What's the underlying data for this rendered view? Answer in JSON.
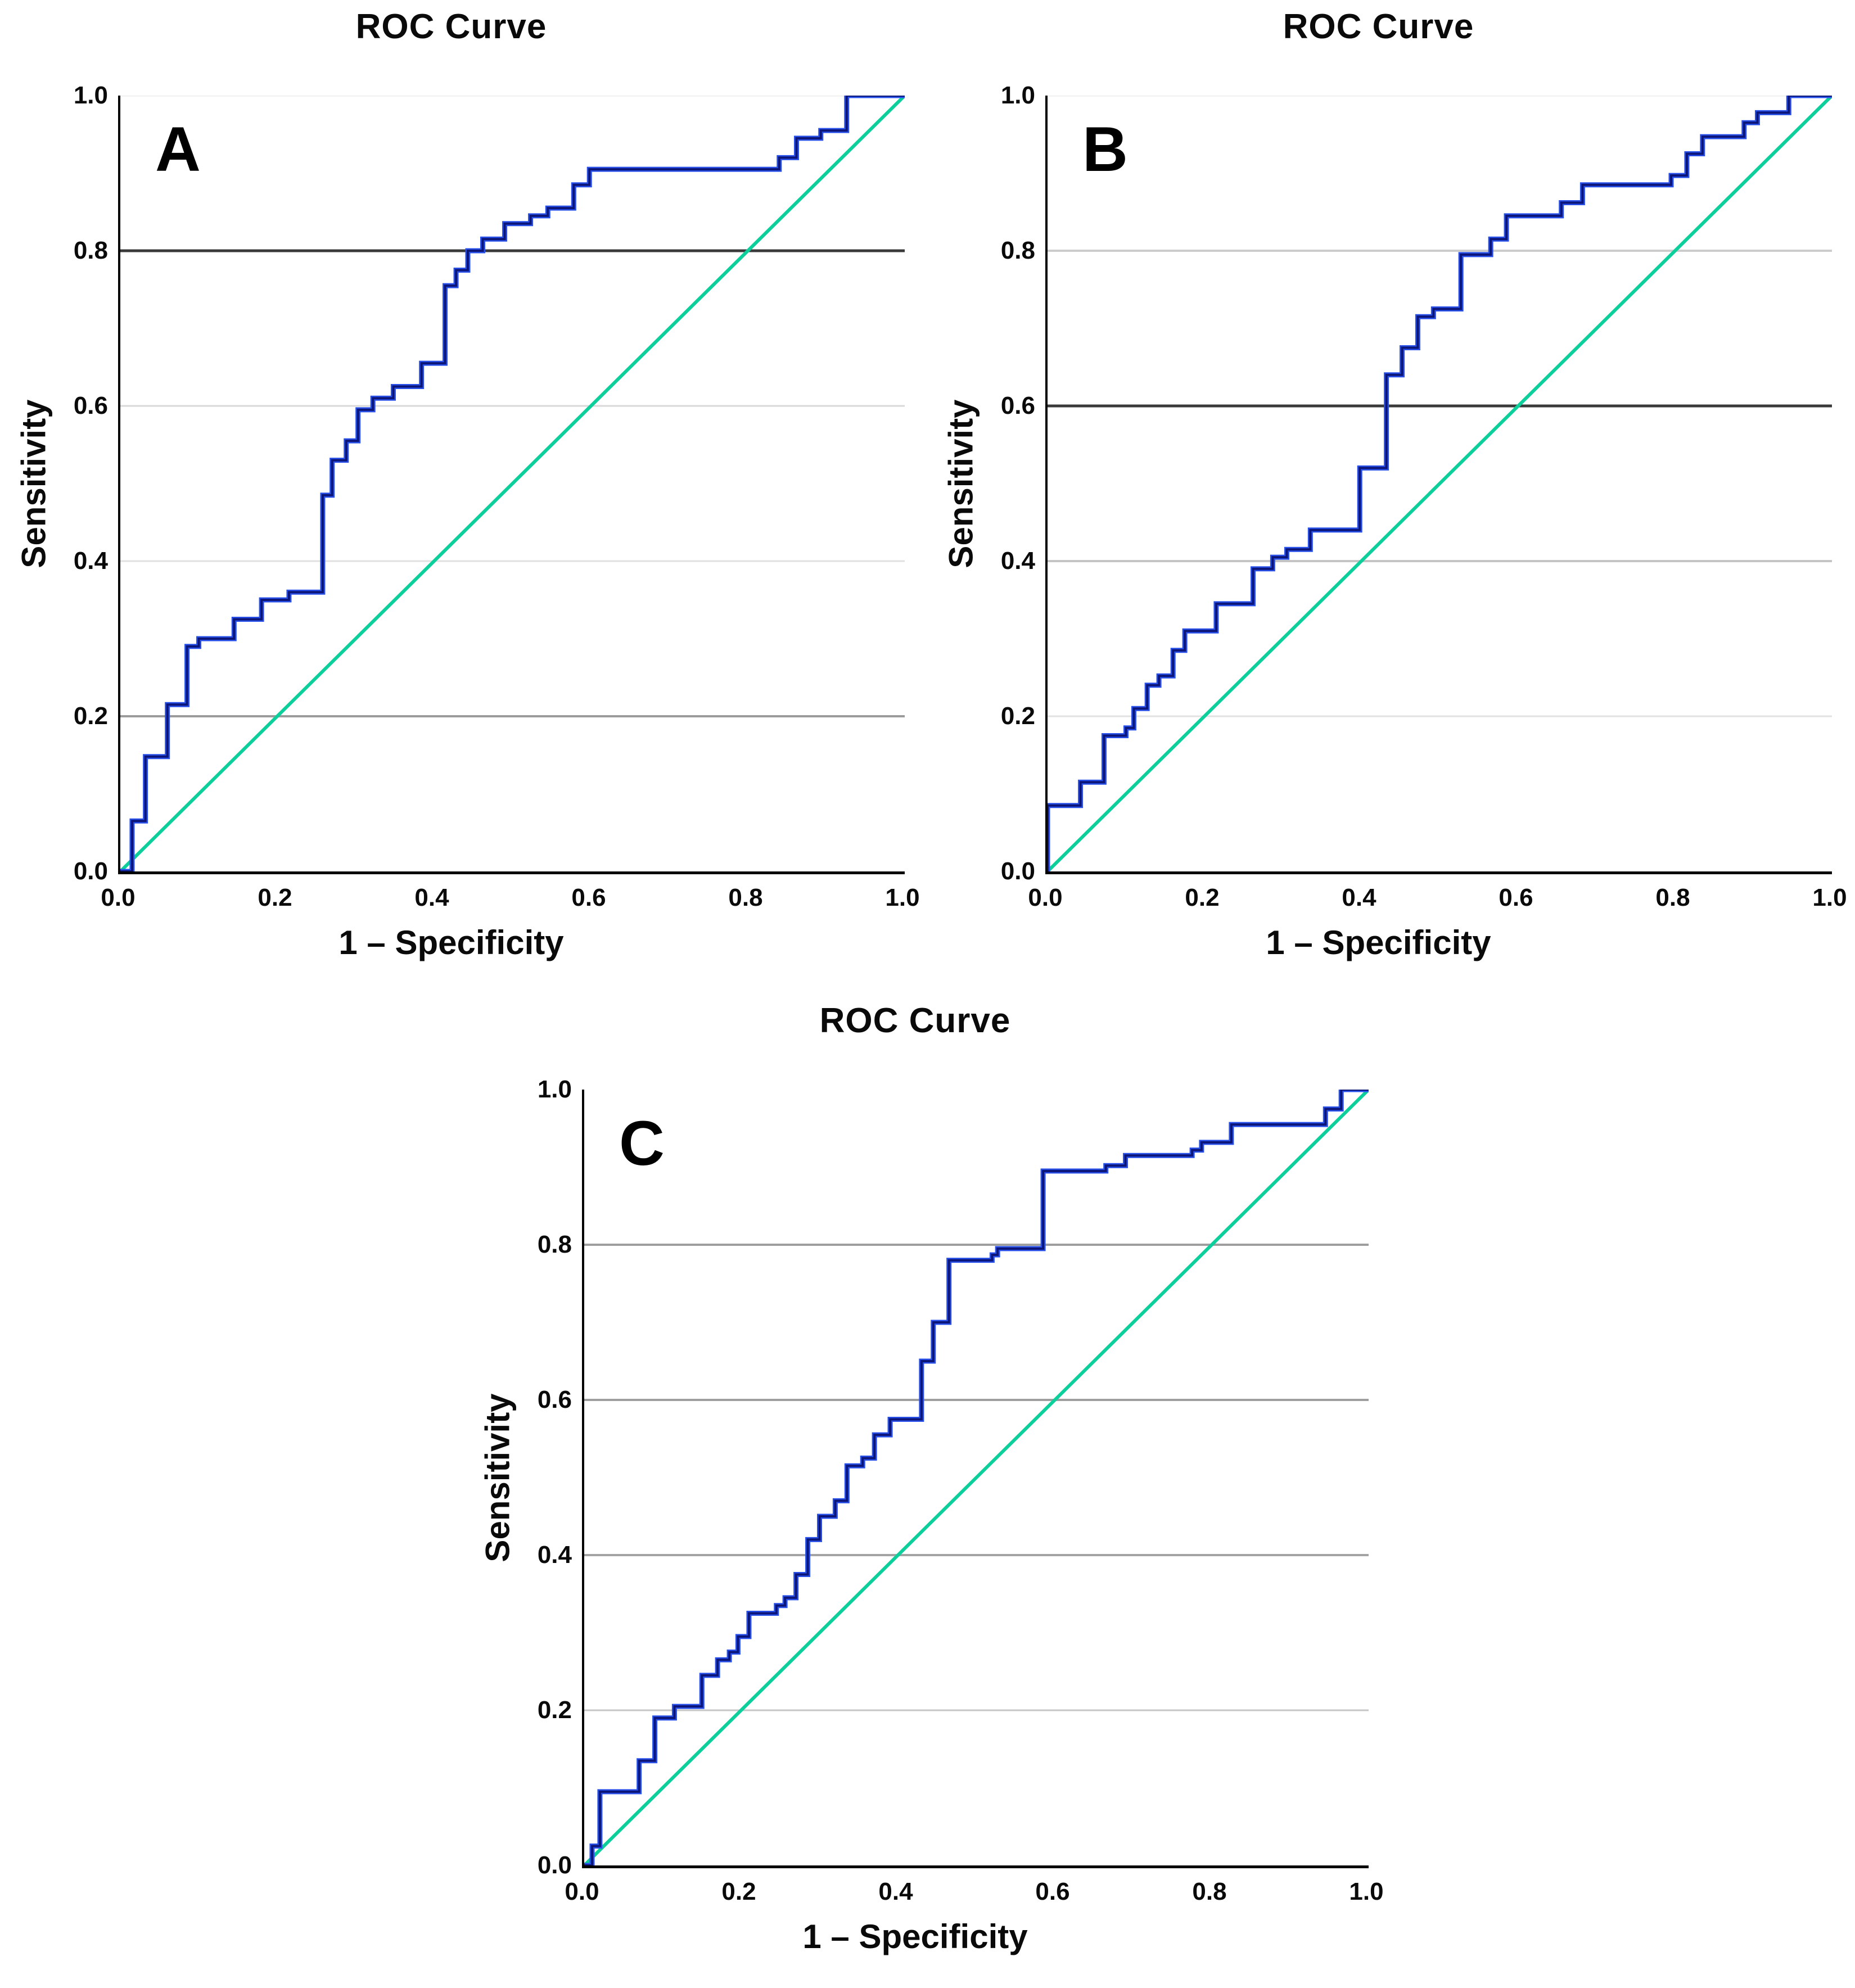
{
  "figure": {
    "background": "#ffffff",
    "colors": {
      "curve_halo": "#2850e8",
      "curve_core": "#0c1678",
      "reference_line": "#0dcf9c",
      "axis": "#000000",
      "text": "#0a0a0a"
    }
  },
  "chart_data": [
    {
      "id": "A",
      "panel_label": "A",
      "type": "line",
      "title": "ROC Curve",
      "xlabel": "1 – Specificity",
      "ylabel": "Sensitivity",
      "xlim": [
        0,
        1
      ],
      "ylim": [
        0,
        1
      ],
      "legend": "none",
      "xticks": [
        {
          "v": 0,
          "label": "0.0"
        },
        {
          "v": 0.2,
          "label": "0.2"
        },
        {
          "v": 0.4,
          "label": "0.4"
        },
        {
          "v": 0.6,
          "label": "0.6"
        },
        {
          "v": 0.8,
          "label": "0.8"
        },
        {
          "v": 1,
          "label": "1.0"
        }
      ],
      "yticks": [
        {
          "v": 0,
          "label": "0.0"
        },
        {
          "v": 0.2,
          "label": "0.2"
        },
        {
          "v": 0.4,
          "label": "0.4"
        },
        {
          "v": 0.6,
          "label": "0.6"
        },
        {
          "v": 0.8,
          "label": "0.8"
        },
        {
          "v": 1,
          "label": "1.0"
        }
      ],
      "gridlines": [
        {
          "y": 1.0,
          "color": "#ededed",
          "width": 3
        },
        {
          "y": 0.8,
          "color": "#3a3a3a",
          "width": 5
        },
        {
          "y": 0.6,
          "color": "#d8d8d8",
          "width": 3
        },
        {
          "y": 0.4,
          "color": "#e0e0e0",
          "width": 3
        },
        {
          "y": 0.2,
          "color": "#9b9b9b",
          "width": 4
        }
      ],
      "reference_line": {
        "from": [
          0,
          0
        ],
        "to": [
          1,
          1
        ]
      },
      "roc_points": [
        [
          0,
          0
        ],
        [
          0.015,
          0
        ],
        [
          0.015,
          0.065
        ],
        [
          0.032,
          0.065
        ],
        [
          0.032,
          0.148
        ],
        [
          0.06,
          0.148
        ],
        [
          0.06,
          0.215
        ],
        [
          0.085,
          0.215
        ],
        [
          0.085,
          0.29
        ],
        [
          0.1,
          0.29
        ],
        [
          0.1,
          0.3
        ],
        [
          0.145,
          0.3
        ],
        [
          0.145,
          0.325
        ],
        [
          0.18,
          0.325
        ],
        [
          0.18,
          0.35
        ],
        [
          0.215,
          0.35
        ],
        [
          0.215,
          0.36
        ],
        [
          0.258,
          0.36
        ],
        [
          0.258,
          0.485
        ],
        [
          0.27,
          0.485
        ],
        [
          0.27,
          0.53
        ],
        [
          0.288,
          0.53
        ],
        [
          0.288,
          0.555
        ],
        [
          0.303,
          0.555
        ],
        [
          0.303,
          0.595
        ],
        [
          0.322,
          0.595
        ],
        [
          0.322,
          0.61
        ],
        [
          0.348,
          0.61
        ],
        [
          0.348,
          0.625
        ],
        [
          0.384,
          0.625
        ],
        [
          0.384,
          0.655
        ],
        [
          0.414,
          0.655
        ],
        [
          0.414,
          0.755
        ],
        [
          0.428,
          0.755
        ],
        [
          0.428,
          0.775
        ],
        [
          0.443,
          0.775
        ],
        [
          0.443,
          0.8
        ],
        [
          0.462,
          0.8
        ],
        [
          0.462,
          0.815
        ],
        [
          0.49,
          0.815
        ],
        [
          0.49,
          0.835
        ],
        [
          0.523,
          0.835
        ],
        [
          0.523,
          0.845
        ],
        [
          0.545,
          0.845
        ],
        [
          0.545,
          0.855
        ],
        [
          0.578,
          0.855
        ],
        [
          0.578,
          0.885
        ],
        [
          0.598,
          0.885
        ],
        [
          0.598,
          0.905
        ],
        [
          0.84,
          0.905
        ],
        [
          0.84,
          0.92
        ],
        [
          0.862,
          0.92
        ],
        [
          0.862,
          0.945
        ],
        [
          0.893,
          0.945
        ],
        [
          0.893,
          0.955
        ],
        [
          0.926,
          0.955
        ],
        [
          0.926,
          1.0
        ],
        [
          1.0,
          1.0
        ]
      ]
    },
    {
      "id": "B",
      "panel_label": "B",
      "type": "line",
      "title": "ROC Curve",
      "xlabel": "1 – Specificity",
      "ylabel": "Sensitivity",
      "xlim": [
        0,
        1
      ],
      "ylim": [
        0,
        1
      ],
      "legend": "none",
      "xticks": [
        {
          "v": 0,
          "label": "0.0"
        },
        {
          "v": 0.2,
          "label": "0.2"
        },
        {
          "v": 0.4,
          "label": "0.4"
        },
        {
          "v": 0.6,
          "label": "0.6"
        },
        {
          "v": 0.8,
          "label": "0.8"
        },
        {
          "v": 1,
          "label": "1.0"
        }
      ],
      "yticks": [
        {
          "v": 0,
          "label": "0.0"
        },
        {
          "v": 0.2,
          "label": "0.2"
        },
        {
          "v": 0.4,
          "label": "0.4"
        },
        {
          "v": 0.6,
          "label": "0.6"
        },
        {
          "v": 0.8,
          "label": "0.8"
        },
        {
          "v": 1,
          "label": "1.0"
        }
      ],
      "gridlines": [
        {
          "y": 1.0,
          "color": "#ededed",
          "width": 3
        },
        {
          "y": 0.8,
          "color": "#cccccc",
          "width": 4
        },
        {
          "y": 0.6,
          "color": "#3a3a3a",
          "width": 5
        },
        {
          "y": 0.4,
          "color": "#c4c4c4",
          "width": 4
        },
        {
          "y": 0.2,
          "color": "#e2e2e2",
          "width": 3
        }
      ],
      "reference_line": {
        "from": [
          0,
          0
        ],
        "to": [
          1,
          1
        ]
      },
      "roc_points": [
        [
          0,
          0
        ],
        [
          0,
          0.085
        ],
        [
          0.042,
          0.085
        ],
        [
          0.042,
          0.115
        ],
        [
          0.072,
          0.115
        ],
        [
          0.072,
          0.175
        ],
        [
          0.1,
          0.175
        ],
        [
          0.1,
          0.185
        ],
        [
          0.11,
          0.185
        ],
        [
          0.11,
          0.21
        ],
        [
          0.127,
          0.21
        ],
        [
          0.127,
          0.24
        ],
        [
          0.142,
          0.24
        ],
        [
          0.142,
          0.252
        ],
        [
          0.16,
          0.252
        ],
        [
          0.16,
          0.285
        ],
        [
          0.175,
          0.285
        ],
        [
          0.175,
          0.31
        ],
        [
          0.215,
          0.31
        ],
        [
          0.215,
          0.345
        ],
        [
          0.262,
          0.345
        ],
        [
          0.262,
          0.39
        ],
        [
          0.287,
          0.39
        ],
        [
          0.287,
          0.405
        ],
        [
          0.305,
          0.405
        ],
        [
          0.305,
          0.415
        ],
        [
          0.335,
          0.415
        ],
        [
          0.335,
          0.44
        ],
        [
          0.398,
          0.44
        ],
        [
          0.398,
          0.52
        ],
        [
          0.432,
          0.52
        ],
        [
          0.432,
          0.64
        ],
        [
          0.452,
          0.64
        ],
        [
          0.452,
          0.675
        ],
        [
          0.472,
          0.675
        ],
        [
          0.472,
          0.715
        ],
        [
          0.492,
          0.715
        ],
        [
          0.492,
          0.725
        ],
        [
          0.527,
          0.725
        ],
        [
          0.527,
          0.795
        ],
        [
          0.565,
          0.795
        ],
        [
          0.565,
          0.815
        ],
        [
          0.585,
          0.815
        ],
        [
          0.585,
          0.845
        ],
        [
          0.655,
          0.845
        ],
        [
          0.655,
          0.862
        ],
        [
          0.682,
          0.862
        ],
        [
          0.682,
          0.885
        ],
        [
          0.795,
          0.885
        ],
        [
          0.795,
          0.897
        ],
        [
          0.815,
          0.897
        ],
        [
          0.815,
          0.925
        ],
        [
          0.835,
          0.925
        ],
        [
          0.835,
          0.947
        ],
        [
          0.888,
          0.947
        ],
        [
          0.888,
          0.965
        ],
        [
          0.905,
          0.965
        ],
        [
          0.905,
          0.978
        ],
        [
          0.945,
          0.978
        ],
        [
          0.945,
          1.0
        ],
        [
          1.0,
          1.0
        ]
      ]
    },
    {
      "id": "C",
      "panel_label": "C",
      "type": "line",
      "title": "ROC Curve",
      "xlabel": "1 – Specificity",
      "ylabel": "Sensitivity",
      "xlim": [
        0,
        1
      ],
      "ylim": [
        0,
        1
      ],
      "legend": "none",
      "xticks": [
        {
          "v": 0,
          "label": "0.0"
        },
        {
          "v": 0.2,
          "label": "0.2"
        },
        {
          "v": 0.4,
          "label": "0.4"
        },
        {
          "v": 0.6,
          "label": "0.6"
        },
        {
          "v": 0.8,
          "label": "0.8"
        },
        {
          "v": 1,
          "label": "1.0"
        }
      ],
      "yticks": [
        {
          "v": 0,
          "label": "0.0"
        },
        {
          "v": 0.2,
          "label": "0.2"
        },
        {
          "v": 0.4,
          "label": "0.4"
        },
        {
          "v": 0.6,
          "label": "0.6"
        },
        {
          "v": 0.8,
          "label": "0.8"
        },
        {
          "v": 1,
          "label": "1.0"
        }
      ],
      "gridlines": [
        {
          "y": 0.8,
          "color": "#9e9e9e",
          "width": 4
        },
        {
          "y": 0.6,
          "color": "#9e9e9e",
          "width": 4
        },
        {
          "y": 0.4,
          "color": "#a3a3a3",
          "width": 4
        },
        {
          "y": 0.2,
          "color": "#c6c6c6",
          "width": 3
        }
      ],
      "reference_line": {
        "from": [
          0,
          0
        ],
        "to": [
          1,
          1
        ]
      },
      "roc_points": [
        [
          0,
          0
        ],
        [
          0.01,
          0
        ],
        [
          0.01,
          0.025
        ],
        [
          0.02,
          0.025
        ],
        [
          0.02,
          0.095
        ],
        [
          0.07,
          0.095
        ],
        [
          0.07,
          0.135
        ],
        [
          0.09,
          0.135
        ],
        [
          0.09,
          0.19
        ],
        [
          0.115,
          0.19
        ],
        [
          0.115,
          0.205
        ],
        [
          0.15,
          0.205
        ],
        [
          0.15,
          0.245
        ],
        [
          0.17,
          0.245
        ],
        [
          0.17,
          0.265
        ],
        [
          0.185,
          0.265
        ],
        [
          0.185,
          0.275
        ],
        [
          0.196,
          0.275
        ],
        [
          0.196,
          0.295
        ],
        [
          0.21,
          0.295
        ],
        [
          0.21,
          0.325
        ],
        [
          0.245,
          0.325
        ],
        [
          0.245,
          0.335
        ],
        [
          0.256,
          0.335
        ],
        [
          0.256,
          0.345
        ],
        [
          0.27,
          0.345
        ],
        [
          0.27,
          0.375
        ],
        [
          0.285,
          0.375
        ],
        [
          0.285,
          0.42
        ],
        [
          0.3,
          0.42
        ],
        [
          0.3,
          0.45
        ],
        [
          0.32,
          0.45
        ],
        [
          0.32,
          0.47
        ],
        [
          0.335,
          0.47
        ],
        [
          0.335,
          0.515
        ],
        [
          0.355,
          0.515
        ],
        [
          0.355,
          0.525
        ],
        [
          0.37,
          0.525
        ],
        [
          0.37,
          0.555
        ],
        [
          0.39,
          0.555
        ],
        [
          0.39,
          0.575
        ],
        [
          0.43,
          0.575
        ],
        [
          0.43,
          0.65
        ],
        [
          0.445,
          0.65
        ],
        [
          0.445,
          0.7
        ],
        [
          0.465,
          0.7
        ],
        [
          0.465,
          0.78
        ],
        [
          0.52,
          0.78
        ],
        [
          0.52,
          0.787
        ],
        [
          0.527,
          0.787
        ],
        [
          0.527,
          0.795
        ],
        [
          0.585,
          0.795
        ],
        [
          0.585,
          0.895
        ],
        [
          0.665,
          0.895
        ],
        [
          0.665,
          0.902
        ],
        [
          0.69,
          0.902
        ],
        [
          0.69,
          0.915
        ],
        [
          0.775,
          0.915
        ],
        [
          0.775,
          0.922
        ],
        [
          0.787,
          0.922
        ],
        [
          0.787,
          0.932
        ],
        [
          0.825,
          0.932
        ],
        [
          0.825,
          0.955
        ],
        [
          0.945,
          0.955
        ],
        [
          0.945,
          0.975
        ],
        [
          0.965,
          0.975
        ],
        [
          0.965,
          1.0
        ],
        [
          1.0,
          1.0
        ]
      ]
    }
  ]
}
